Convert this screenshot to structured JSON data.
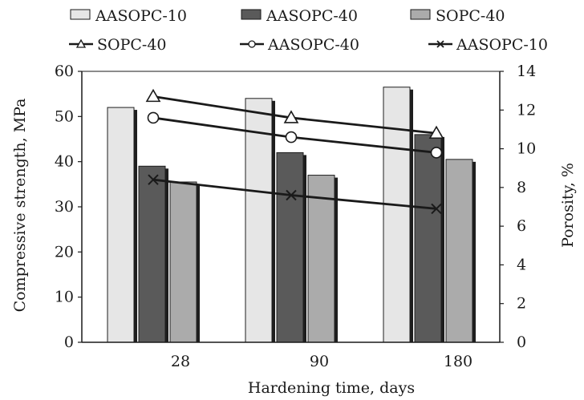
{
  "chart_data": {
    "type": "bar",
    "xlabel": "Hardening time, days",
    "ylabel": "Compressive strength, MPa",
    "y2label": "Porosity, %",
    "categories": [
      "28",
      "90",
      "180"
    ],
    "ylim": [
      0,
      60
    ],
    "yticks": [
      "0",
      "10",
      "20",
      "30",
      "40",
      "50",
      "60"
    ],
    "y2lim": [
      0,
      14
    ],
    "y2ticks": [
      "0",
      "2",
      "4",
      "6",
      "8",
      "10",
      "12",
      "14"
    ],
    "grid": false,
    "legend_position": "top",
    "series": [
      {
        "name": "AASOPC-10",
        "kind": "bar",
        "axis": "left",
        "color": "#e6e6e6",
        "values": [
          52,
          54,
          56.5
        ]
      },
      {
        "name": "AASOPC-40",
        "kind": "bar",
        "axis": "left",
        "color": "#5a5a5a",
        "values": [
          39,
          42,
          46
        ]
      },
      {
        "name": "SOPC-40",
        "kind": "bar",
        "axis": "left",
        "color": "#ababab",
        "values": [
          35.5,
          37,
          40.5
        ]
      },
      {
        "name": "SOPC-40",
        "kind": "line",
        "axis": "right",
        "marker": "triangle",
        "values": [
          12.7,
          11.6,
          10.8
        ]
      },
      {
        "name": "AASOPC-40",
        "kind": "line",
        "axis": "right",
        "marker": "circle",
        "values": [
          11.6,
          10.6,
          9.8
        ]
      },
      {
        "name": "AASOPC-10",
        "kind": "line",
        "axis": "right",
        "marker": "cross",
        "values": [
          8.4,
          7.6,
          6.9
        ]
      }
    ]
  }
}
